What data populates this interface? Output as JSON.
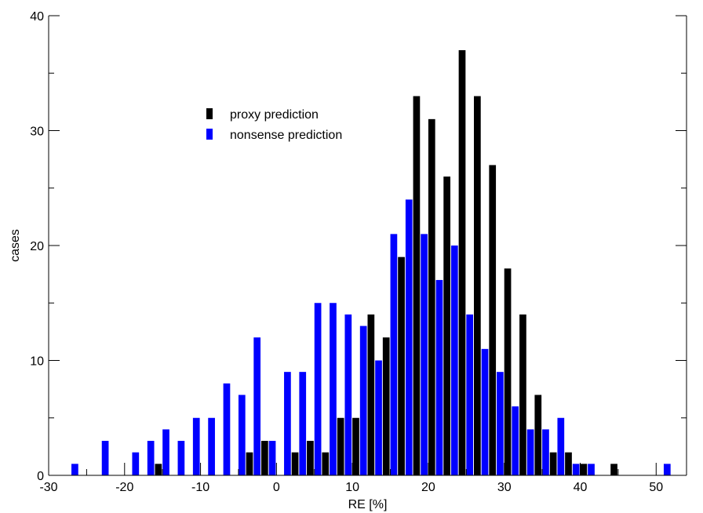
{
  "chart_data": {
    "type": "bar",
    "xlabel": "RE  [%]",
    "ylabel": "cases",
    "xlim": [
      -30,
      54
    ],
    "ylim": [
      0,
      40
    ],
    "xticks": [
      -30,
      -20,
      -10,
      0,
      10,
      20,
      30,
      40,
      50
    ],
    "yticks": [
      0,
      10,
      20,
      30,
      40
    ],
    "legend_position": "upper-left-center",
    "series": [
      {
        "name": "proxy prediction",
        "color": "#000000",
        "points": [
          [
            -16,
            1
          ],
          [
            -4,
            2
          ],
          [
            -2,
            3
          ],
          [
            2,
            2
          ],
          [
            4,
            3
          ],
          [
            6,
            2
          ],
          [
            8,
            5
          ],
          [
            10,
            5
          ],
          [
            12,
            14
          ],
          [
            14,
            12
          ],
          [
            16,
            19
          ],
          [
            18,
            33
          ],
          [
            20,
            31
          ],
          [
            22,
            26
          ],
          [
            24,
            37
          ],
          [
            26,
            33
          ],
          [
            28,
            27
          ],
          [
            30,
            18
          ],
          [
            32,
            14
          ],
          [
            34,
            7
          ],
          [
            36,
            2
          ],
          [
            38,
            2
          ],
          [
            40,
            1
          ],
          [
            44,
            1
          ]
        ]
      },
      {
        "name": "nonsense prediction",
        "color": "#0000ff",
        "points": [
          [
            -28,
            1
          ],
          [
            -24,
            3
          ],
          [
            -20,
            2
          ],
          [
            -18,
            3
          ],
          [
            -16,
            4
          ],
          [
            -14,
            3
          ],
          [
            -12,
            5
          ],
          [
            -10,
            5
          ],
          [
            -8,
            8
          ],
          [
            -6,
            7
          ],
          [
            -4,
            12
          ],
          [
            -2,
            3
          ],
          [
            0,
            9
          ],
          [
            2,
            9
          ],
          [
            4,
            15
          ],
          [
            6,
            15
          ],
          [
            8,
            14
          ],
          [
            10,
            13
          ],
          [
            12,
            10
          ],
          [
            14,
            21
          ],
          [
            16,
            24
          ],
          [
            18,
            21
          ],
          [
            20,
            17
          ],
          [
            22,
            20
          ],
          [
            24,
            14
          ],
          [
            26,
            11
          ],
          [
            28,
            9
          ],
          [
            30,
            6
          ],
          [
            32,
            4
          ],
          [
            34,
            4
          ],
          [
            36,
            5
          ],
          [
            38,
            1
          ],
          [
            40,
            1
          ],
          [
            50,
            1
          ]
        ]
      }
    ]
  }
}
